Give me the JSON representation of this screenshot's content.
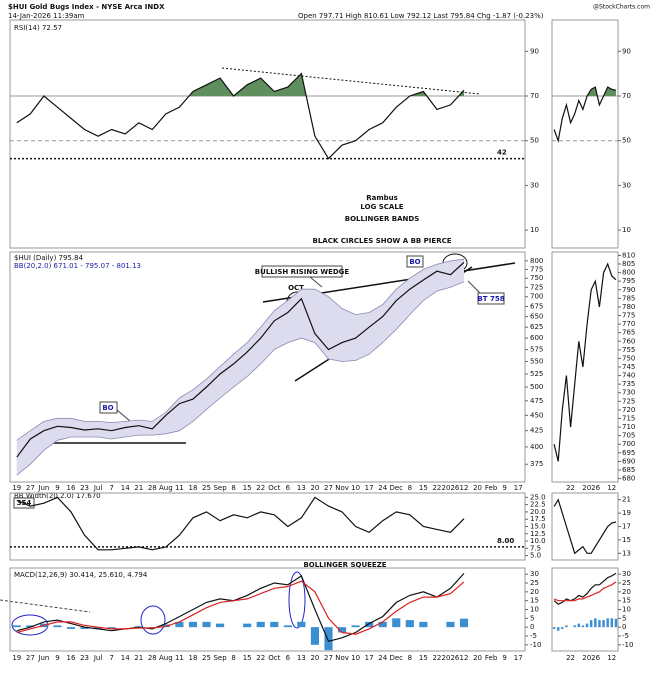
{
  "header": {
    "title": "$HUI Gold Bugs Index - NYSE Arca INDX",
    "date": "14-Jan-2026 11:39am",
    "quote": "Open 797.71 High 810.61 Low 792.12 Last 795.84 Chg -1.87 (-0.23%)",
    "source": "@StockCharts.com",
    "notes": [
      "Rambus",
      "LOG SCALE",
      "BOLLINGER BANDS",
      "BLACK CIRCLES SHOW A BB PIERCE"
    ]
  },
  "chart_data": [
    {
      "type": "line",
      "title": "RSI(14) 72.57",
      "ylim": [
        2,
        104
      ],
      "yticks": [
        90,
        70,
        50,
        30,
        10
      ],
      "levels": [
        70,
        50
      ],
      "marked_levels": [
        42
      ],
      "fill_above": 70,
      "fill_color": "#5f8f5f",
      "series": [
        {
          "color": "#111111",
          "values": [
            58,
            62,
            70,
            65,
            60,
            55,
            52,
            55,
            53,
            58,
            55,
            62,
            65,
            72,
            75,
            78,
            70,
            75,
            78,
            72,
            74,
            80,
            52,
            42,
            48,
            50,
            55,
            58,
            65,
            70,
            72,
            64,
            66,
            72.57,
            null,
            null,
            null,
            null
          ]
        }
      ]
    },
    {
      "type": "line",
      "title": "$HUI (Daily) 795.84",
      "subtitle": "BB(20,2.0) 671.01 - 795.07 - 801.13",
      "log_scale": true,
      "ylim": [
        351,
        827
      ],
      "yticks": [
        375,
        400,
        425,
        450,
        475,
        500,
        525,
        550,
        575,
        600,
        625,
        650,
        675,
        700,
        725,
        750,
        775,
        800
      ],
      "annotations": [
        "BULLISH RISING WEDGE",
        "OCT",
        "BO",
        "BO",
        "BT 758"
      ],
      "categories": [
        "19",
        "27",
        "Jun",
        "9",
        "16",
        "23",
        "Jul",
        "7",
        "14",
        "21",
        "28",
        "Aug",
        "11",
        "18",
        "25",
        "Sep",
        "8",
        "15",
        "22",
        "Oct",
        "6",
        "13",
        "20",
        "27",
        "Nov",
        "10",
        "17",
        "24",
        "Dec",
        "8",
        "15",
        "22",
        "2026",
        "12",
        "20",
        "Feb",
        "9",
        "17"
      ],
      "band_color": "#dcdcee",
      "series": [
        {
          "type": "band",
          "color": "#8a8ab5",
          "values": [
            410,
            425,
            440,
            445,
            445,
            440,
            440,
            438,
            440,
            442,
            440,
            455,
            480,
            495,
            515,
            540,
            565,
            590,
            625,
            665,
            690,
            720,
            720,
            700,
            670,
            655,
            660,
            680,
            720,
            750,
            775,
            790,
            800,
            805,
            null,
            null,
            null,
            null
          ]
        },
        {
          "type": "band",
          "color": "#8a8ab5",
          "values": [
            360,
            375,
            395,
            410,
            415,
            415,
            415,
            412,
            415,
            418,
            418,
            420,
            425,
            440,
            460,
            480,
            500,
            520,
            545,
            575,
            590,
            600,
            590,
            555,
            550,
            552,
            565,
            590,
            620,
            655,
            690,
            715,
            725,
            740,
            null,
            null,
            null,
            null
          ]
        },
        {
          "color": "#111111",
          "values": [
            385,
            412,
            425,
            432,
            430,
            426,
            428,
            425,
            430,
            433,
            428,
            450,
            470,
            478,
            500,
            525,
            545,
            570,
            600,
            640,
            660,
            695,
            610,
            575,
            590,
            600,
            625,
            650,
            690,
            720,
            745,
            770,
            760,
            795.84,
            null,
            null,
            null,
            null
          ]
        }
      ]
    },
    {
      "type": "line",
      "title": "BB Width(20,2.0) 17.670",
      "label": "354",
      "annotations": [
        "BOLLINGER SQUEEZE"
      ],
      "ylim": [
        3.5,
        26.5
      ],
      "yticks": [
        {
          "value": 25,
          "label": "25.0"
        },
        22.5,
        {
          "value": 20,
          "label": "20.0"
        },
        17.5,
        {
          "value": 15,
          "label": "15.0"
        },
        12.5,
        {
          "value": 10,
          "label": "10.0"
        },
        7.5,
        {
          "value": 5,
          "label": "5.0"
        }
      ],
      "marked_levels": [
        {
          "value": 8,
          "label": "8.00"
        }
      ],
      "series": [
        {
          "color": "#111111",
          "values": [
            24,
            22,
            23,
            25,
            20,
            12,
            7,
            7,
            7.5,
            8,
            7,
            8,
            12,
            18,
            20,
            17,
            19,
            18,
            20,
            19,
            15,
            18,
            25,
            22,
            20,
            15,
            13,
            17,
            20,
            19,
            15,
            14,
            13,
            17.67,
            null,
            null,
            null,
            null
          ]
        }
      ]
    },
    {
      "type": "line",
      "title": "MACD(12,26,9) 30.414, 25.610, 4.794",
      "ylim": [
        -13.5,
        33.5
      ],
      "yticks": [
        30,
        25,
        20,
        15,
        10,
        5,
        0,
        -5,
        -10
      ],
      "categories": [
        "19",
        "27",
        "Jun",
        "9",
        "16",
        "23",
        "Jul",
        "7",
        "14",
        "21",
        "28",
        "Aug",
        "11",
        "18",
        "25",
        "Sep",
        "8",
        "15",
        "22",
        "Oct",
        "6",
        "13",
        "20",
        "27",
        "Nov",
        "10",
        "17",
        "24",
        "Dec",
        "8",
        "15",
        "22",
        "2026",
        "12",
        "20",
        "Feb",
        "9",
        "17"
      ],
      "series": [
        {
          "type": "bar",
          "color": "#3b8fd1",
          "values": [
            1,
            1,
            2,
            1,
            -1,
            -1,
            -1,
            -1,
            0,
            0.5,
            -0.5,
            1.5,
            3,
            3,
            3,
            2,
            0,
            2,
            3,
            3,
            1,
            3,
            -10,
            -13,
            -3,
            1,
            3,
            3,
            5,
            4,
            3,
            0,
            3,
            4.794,
            null,
            null,
            null,
            null
          ]
        },
        {
          "color": "#111111",
          "values": [
            -2,
            0,
            3,
            4,
            2,
            0,
            -1,
            -2,
            -1,
            0,
            -1,
            2,
            6,
            10,
            14,
            16,
            15,
            18,
            22,
            25,
            24,
            29,
            10,
            -8,
            -6,
            -3,
            2,
            6,
            14,
            18,
            20,
            17,
            22,
            30.414,
            null,
            null,
            null,
            null
          ]
        },
        {
          "color": "#e02020",
          "values": [
            -3,
            -1,
            1,
            3,
            3,
            1,
            0,
            -1,
            -1,
            -0.5,
            -0.5,
            0.5,
            3,
            7,
            11,
            14,
            15,
            16,
            19,
            22,
            23,
            26,
            20,
            5,
            -3,
            -4,
            -1,
            3,
            9,
            14,
            17,
            17,
            19,
            25.61,
            null,
            null,
            null,
            null
          ]
        }
      ]
    },
    {
      "type": "line",
      "ylim": [
        2,
        104
      ],
      "yticks": [
        90,
        70,
        50,
        30,
        10
      ],
      "levels": [
        70,
        50
      ],
      "fill_above": 70,
      "fill_color": "#5f8f5f",
      "series": [
        {
          "color": "#111111",
          "values": [
            55,
            50,
            60,
            66,
            58,
            62,
            68,
            64,
            70,
            73,
            74,
            66,
            70,
            74,
            73,
            72.57
          ]
        }
      ]
    },
    {
      "type": "line",
      "ylim": [
        678,
        812
      ],
      "yticks": [
        680,
        685,
        690,
        695,
        700,
        705,
        710,
        715,
        720,
        725,
        730,
        735,
        740,
        745,
        750,
        755,
        760,
        765,
        770,
        775,
        780,
        785,
        790,
        795,
        800,
        805,
        810
      ],
      "categories": [
        null,
        null,
        null,
        null,
        "22",
        null,
        null,
        null,
        null,
        "2026",
        null,
        null,
        null,
        null,
        "12",
        null
      ],
      "series": [
        {
          "color": "#111111",
          "values": [
            700,
            690,
            720,
            740,
            710,
            735,
            760,
            745,
            770,
            790,
            795,
            780,
            800,
            805,
            798,
            795.84
          ]
        }
      ]
    },
    {
      "type": "line",
      "ylim": [
        12,
        22
      ],
      "yticks": [
        21,
        19,
        17,
        15,
        13
      ],
      "series": [
        {
          "color": "#111111",
          "values": [
            20,
            21,
            19,
            17,
            15,
            13,
            13.5,
            14,
            13,
            13,
            14,
            15,
            16,
            17,
            17.5,
            17.67
          ]
        }
      ]
    },
    {
      "type": "line",
      "ylim": [
        -13.5,
        33.5
      ],
      "yticks": [
        30,
        25,
        20,
        15,
        10,
        5,
        0,
        -5,
        -10
      ],
      "categories": [
        null,
        null,
        null,
        null,
        "22",
        null,
        null,
        null,
        null,
        "2026",
        null,
        null,
        null,
        null,
        "12",
        null
      ],
      "series": [
        {
          "type": "bar",
          "color": "#3b8fd1",
          "values": [
            -1,
            -2,
            -1,
            1,
            0,
            1,
            2,
            1,
            2,
            4,
            5,
            4,
            4,
            5,
            5,
            4.794
          ]
        },
        {
          "color": "#111111",
          "values": [
            15,
            13,
            14,
            16,
            15,
            16,
            18,
            17,
            19,
            22,
            24,
            24,
            26,
            28,
            29,
            30.414
          ]
        },
        {
          "color": "#e02020",
          "values": [
            16,
            15,
            15,
            15,
            15,
            15,
            16,
            16,
            17,
            18,
            19,
            20,
            22,
            23,
            24,
            25.61
          ]
        }
      ]
    }
  ]
}
